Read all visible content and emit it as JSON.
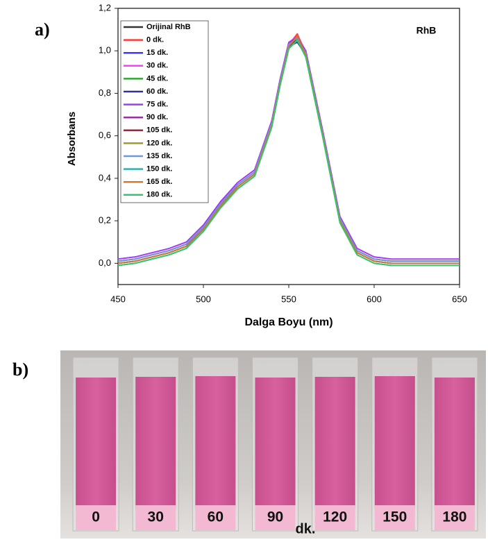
{
  "panel_labels": [
    "a)",
    "b)"
  ],
  "chart_data": {
    "type": "line",
    "xlabel": "Dalga Boyu (nm)",
    "ylabel": "Absorbans",
    "annotation": "RhB",
    "x": [
      450,
      460,
      470,
      480,
      490,
      500,
      510,
      520,
      530,
      540,
      545,
      550,
      555,
      560,
      570,
      580,
      590,
      600,
      610,
      620,
      630,
      640,
      650
    ],
    "xlim": [
      450,
      650
    ],
    "xticks": [
      450,
      500,
      550,
      600,
      650
    ],
    "ylim": [
      -0.1,
      1.2
    ],
    "yticks": [
      {
        "value": 0,
        "label": "0,0"
      },
      {
        "value": 0.2,
        "label": "0,2"
      },
      {
        "value": 0.4,
        "label": "0,4"
      },
      {
        "value": 0.6,
        "label": "0,6"
      },
      {
        "value": 0.8,
        "label": "0,8"
      },
      {
        "value": 1.0,
        "label": "1,0"
      },
      {
        "value": 1.2,
        "label": "1,2"
      }
    ],
    "grid": false,
    "legend": "upper left",
    "series": [
      {
        "name": "Orijinal RhB",
        "color": "#333333",
        "values": [
          0,
          0.01,
          0.03,
          0.05,
          0.08,
          0.16,
          0.27,
          0.36,
          0.42,
          0.65,
          0.85,
          1.02,
          1.06,
          0.98,
          0.6,
          0.2,
          0.05,
          0.01,
          0,
          0,
          0,
          0,
          0
        ]
      },
      {
        "name": "0 dk.",
        "color": "#ff3b3b",
        "values": [
          0.01,
          0.02,
          0.04,
          0.06,
          0.09,
          0.17,
          0.28,
          0.37,
          0.43,
          0.66,
          0.86,
          1.03,
          1.08,
          0.99,
          0.61,
          0.21,
          0.06,
          0.02,
          0.01,
          0.01,
          0.01,
          0.01,
          0.01
        ]
      },
      {
        "name": "15 dk.",
        "color": "#3b3bff",
        "values": [
          0.01,
          0.02,
          0.04,
          0.06,
          0.09,
          0.17,
          0.28,
          0.37,
          0.43,
          0.66,
          0.86,
          1.03,
          1.05,
          0.99,
          0.61,
          0.21,
          0.06,
          0.02,
          0.01,
          0.01,
          0.01,
          0.01,
          0.01
        ]
      },
      {
        "name": "30 dk.",
        "color": "#ff3bff",
        "values": [
          0.02,
          0.03,
          0.05,
          0.07,
          0.1,
          0.18,
          0.29,
          0.38,
          0.44,
          0.67,
          0.87,
          1.04,
          1.07,
          1.0,
          0.62,
          0.22,
          0.07,
          0.03,
          0.02,
          0.02,
          0.02,
          0.02,
          0.02
        ]
      },
      {
        "name": "45 dk.",
        "color": "#2fa82f",
        "values": [
          -0.01,
          0,
          0.02,
          0.04,
          0.07,
          0.15,
          0.26,
          0.35,
          0.41,
          0.64,
          0.84,
          1.01,
          1.05,
          0.97,
          0.59,
          0.19,
          0.04,
          0,
          -0.01,
          -0.01,
          -0.01,
          -0.01,
          -0.01
        ]
      },
      {
        "name": "60 dk.",
        "color": "#33338f",
        "values": [
          0,
          0.01,
          0.03,
          0.05,
          0.08,
          0.16,
          0.27,
          0.36,
          0.42,
          0.65,
          0.85,
          1.02,
          1.04,
          0.98,
          0.6,
          0.2,
          0.05,
          0.01,
          0,
          0,
          0,
          0,
          0
        ]
      },
      {
        "name": "75 dk.",
        "color": "#9b3bff",
        "values": [
          0.02,
          0.03,
          0.05,
          0.07,
          0.1,
          0.18,
          0.29,
          0.38,
          0.44,
          0.67,
          0.87,
          1.04,
          1.06,
          1.0,
          0.62,
          0.22,
          0.07,
          0.03,
          0.02,
          0.02,
          0.02,
          0.02,
          0.02
        ]
      },
      {
        "name": "90 dk.",
        "color": "#9b2f9b",
        "values": [
          0.01,
          0.02,
          0.04,
          0.06,
          0.09,
          0.17,
          0.28,
          0.37,
          0.43,
          0.66,
          0.86,
          1.03,
          1.07,
          0.99,
          0.61,
          0.21,
          0.06,
          0.02,
          0.01,
          0.01,
          0.01,
          0.01,
          0.01
        ]
      },
      {
        "name": "105 dk.",
        "color": "#8f2f3b",
        "values": [
          0,
          0.01,
          0.03,
          0.05,
          0.08,
          0.16,
          0.27,
          0.36,
          0.42,
          0.65,
          0.85,
          1.02,
          1.06,
          0.98,
          0.6,
          0.2,
          0.05,
          0.01,
          0,
          0,
          0,
          0,
          0
        ]
      },
      {
        "name": "120 dk.",
        "color": "#9b9b2f",
        "values": [
          -0.01,
          0,
          0.02,
          0.04,
          0.07,
          0.15,
          0.26,
          0.35,
          0.41,
          0.64,
          0.84,
          1.01,
          1.05,
          0.97,
          0.59,
          0.19,
          0.04,
          0,
          -0.01,
          -0.01,
          -0.01,
          -0.01,
          -0.01
        ]
      },
      {
        "name": "135 dk.",
        "color": "#6b9bd2",
        "values": [
          0.01,
          0.02,
          0.04,
          0.06,
          0.09,
          0.17,
          0.28,
          0.37,
          0.43,
          0.66,
          0.86,
          1.03,
          1.06,
          0.99,
          0.61,
          0.21,
          0.06,
          0.02,
          0.01,
          0.01,
          0.01,
          0.01,
          0.01
        ]
      },
      {
        "name": "150 dk.",
        "color": "#2fb0b0",
        "values": [
          -0.01,
          0,
          0.02,
          0.04,
          0.07,
          0.15,
          0.26,
          0.35,
          0.41,
          0.64,
          0.84,
          1.01,
          1.05,
          0.97,
          0.59,
          0.19,
          0.04,
          0,
          -0.01,
          -0.01,
          -0.01,
          -0.01,
          -0.01
        ]
      },
      {
        "name": "165 dk.",
        "color": "#d07a2f",
        "values": [
          0,
          0.01,
          0.03,
          0.05,
          0.08,
          0.16,
          0.27,
          0.36,
          0.42,
          0.65,
          0.85,
          1.02,
          1.07,
          0.98,
          0.6,
          0.2,
          0.05,
          0.01,
          0,
          0,
          0,
          0,
          0
        ]
      },
      {
        "name": "180 dk.",
        "color": "#2fc86b",
        "values": [
          -0.01,
          0,
          0.02,
          0.04,
          0.07,
          0.15,
          0.26,
          0.35,
          0.41,
          0.64,
          0.84,
          1.01,
          1.05,
          0.97,
          0.59,
          0.19,
          0.04,
          0,
          -0.01,
          -0.01,
          -0.01,
          -0.01,
          -0.01
        ]
      }
    ]
  },
  "photo": {
    "labels": [
      "0",
      "30",
      "60",
      "90",
      "120",
      "150",
      "180"
    ],
    "unit": "dk."
  }
}
